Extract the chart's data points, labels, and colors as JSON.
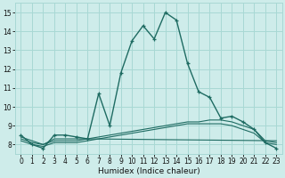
{
  "xlabel": "Humidex (Indice chaleur)",
  "bg_color": "#ceecea",
  "grid_color": "#a8d8d4",
  "line_color": "#1e6b62",
  "xlim": [
    -0.5,
    23.5
  ],
  "ylim": [
    7.5,
    15.5
  ],
  "xticks": [
    0,
    1,
    2,
    3,
    4,
    5,
    6,
    7,
    8,
    9,
    10,
    11,
    12,
    13,
    14,
    15,
    16,
    17,
    18,
    19,
    20,
    21,
    22,
    23
  ],
  "yticks": [
    8,
    9,
    10,
    11,
    12,
    13,
    14,
    15
  ],
  "main_x": [
    0,
    1,
    2,
    3,
    4,
    5,
    6,
    7,
    8,
    9,
    10,
    11,
    12,
    13,
    14,
    15,
    16,
    17,
    18,
    19,
    20,
    21,
    22,
    23
  ],
  "main_y": [
    8.5,
    8.0,
    7.8,
    8.5,
    8.5,
    8.4,
    8.3,
    10.7,
    9.0,
    11.8,
    13.5,
    14.3,
    13.6,
    15.0,
    14.6,
    12.3,
    10.8,
    10.5,
    9.4,
    9.5,
    9.2,
    8.8,
    8.1,
    7.8
  ],
  "line2_x": [
    0,
    1,
    2,
    3,
    4,
    5,
    6,
    7,
    8,
    9,
    10,
    11,
    12,
    13,
    14,
    15,
    16,
    17,
    18,
    19,
    20,
    21,
    22,
    23
  ],
  "line2_y": [
    8.3,
    8.1,
    8.0,
    8.2,
    8.2,
    8.2,
    8.3,
    8.4,
    8.5,
    8.6,
    8.7,
    8.8,
    8.9,
    9.0,
    9.1,
    9.2,
    9.2,
    9.3,
    9.3,
    9.2,
    9.0,
    8.8,
    8.2,
    8.1
  ],
  "line3_x": [
    0,
    1,
    2,
    3,
    4,
    5,
    6,
    7,
    8,
    9,
    10,
    11,
    12,
    13,
    14,
    15,
    16,
    17,
    18,
    19,
    20,
    21,
    22,
    23
  ],
  "line3_y": [
    8.2,
    8.0,
    7.9,
    8.1,
    8.1,
    8.1,
    8.2,
    8.3,
    8.4,
    8.5,
    8.6,
    8.7,
    8.8,
    8.9,
    9.0,
    9.1,
    9.1,
    9.1,
    9.1,
    9.0,
    8.8,
    8.6,
    8.1,
    8.0
  ],
  "line4_x": [
    0,
    1,
    2,
    3,
    4,
    5,
    6,
    23
  ],
  "line4_y": [
    8.4,
    8.2,
    8.0,
    8.3,
    8.3,
    8.3,
    8.3,
    8.2
  ]
}
